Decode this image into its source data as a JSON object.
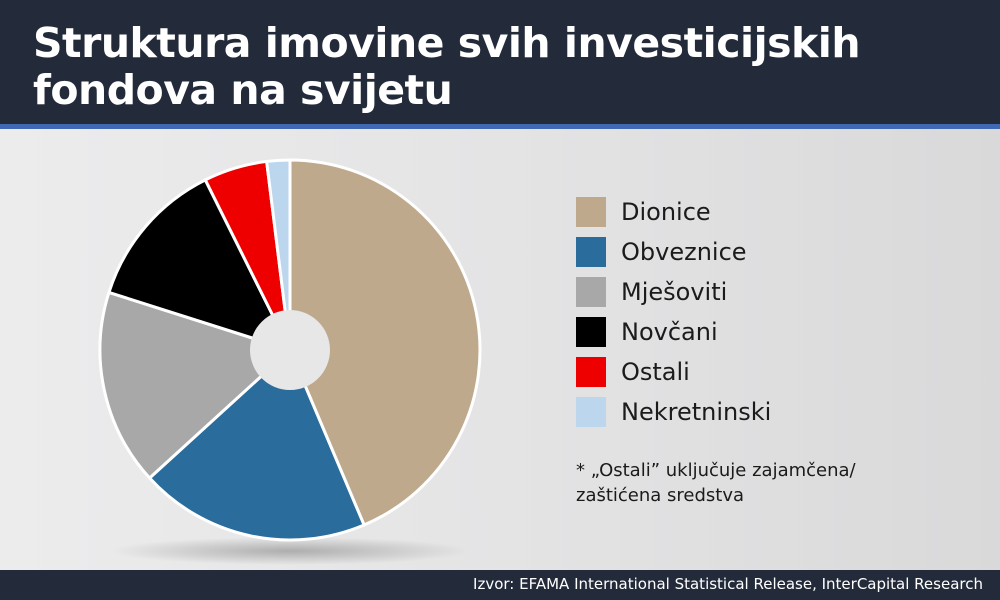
{
  "header": {
    "title": "Struktura imovine svih investicijskih fondova na svijetu"
  },
  "chart_data": {
    "type": "pie",
    "title": "Struktura imovine svih investicijskih fondova na svijetu",
    "donut": true,
    "start": "top",
    "direction": "clockwise",
    "legend_position": "right",
    "categories": [
      "Dionice",
      "Obveznice",
      "Mješoviti",
      "Novčani",
      "Ostali",
      "Nekretninski"
    ],
    "values": [
      44.5,
      20,
      17,
      13,
      5.5,
      2
    ],
    "colors": [
      "#bfa98d",
      "#2a6c9c",
      "#a8a8a8",
      "#000000",
      "#ee0000",
      "#bcd6ee"
    ]
  },
  "footnote": {
    "line1": "* „Ostali” uključuje zajamčena/",
    "line2": "zaštićena sredstva"
  },
  "source": {
    "text": "Izvor: EFAMA International Statistical Release, InterCapital Research"
  }
}
